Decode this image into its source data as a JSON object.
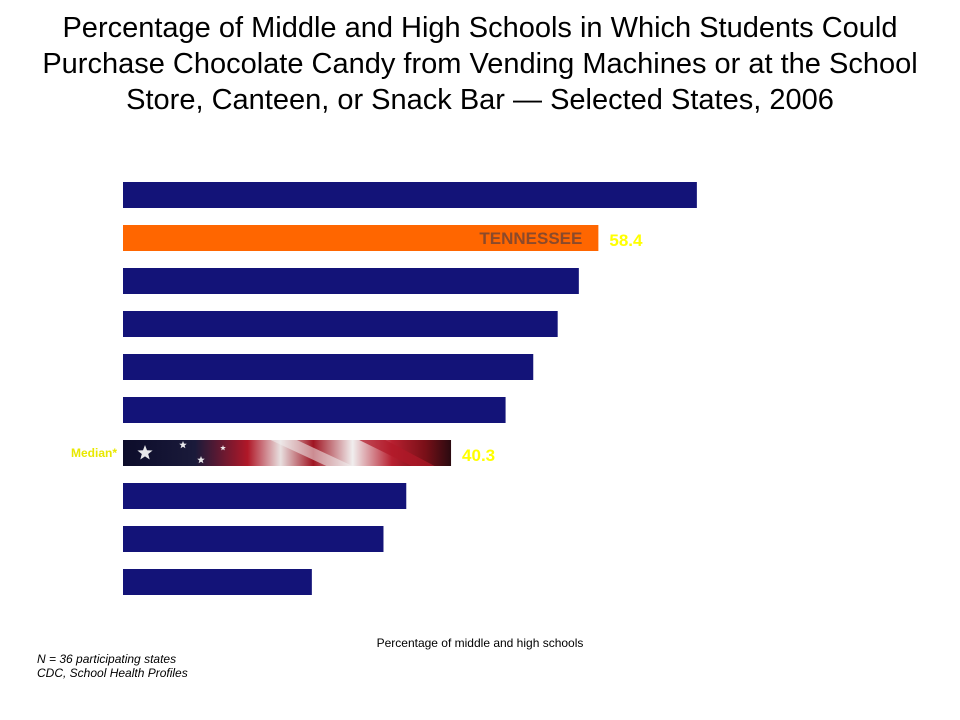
{
  "chart_data": {
    "type": "bar",
    "orientation": "horizontal",
    "title": "Percentage of Middle and High Schools in Which Students Could Purchase Chocolate Candy from Vending Machines or at the School Store, Canteen, or Snack Bar — Selected States, 2006",
    "xlabel": "Percentage of middle and high schools",
    "ylabel": "",
    "xlim": [
      0,
      100
    ],
    "grid": false,
    "legend": "none",
    "values": [
      70.5,
      58.4,
      56.0,
      53.4,
      50.4,
      47.0,
      40.3,
      34.8,
      32.0,
      23.2
    ],
    "categories": [
      "",
      "TENNESSEE",
      "",
      "",
      "",
      "",
      "Median*",
      "",
      "",
      ""
    ],
    "data_labels": [
      "",
      "58.4",
      "",
      "",
      "",
      "",
      "40.3",
      "",
      "",
      ""
    ],
    "bar_styles": [
      "navy",
      "highlight",
      "navy",
      "navy",
      "navy",
      "navy",
      "flag",
      "navy",
      "navy",
      "navy"
    ],
    "colors": {
      "navy": "#131378",
      "highlight": "#ff6600",
      "highlight_label": "#8b4a2b",
      "value_label": "#ffff00",
      "median_label": "#e8e800",
      "flag_dark": "#0c0c2a",
      "flag_red": "#b01828",
      "flag_white": "#f0eeee"
    }
  },
  "footnote": {
    "n": "N = 36 participating states",
    "source": "CDC, School Health Profiles"
  }
}
